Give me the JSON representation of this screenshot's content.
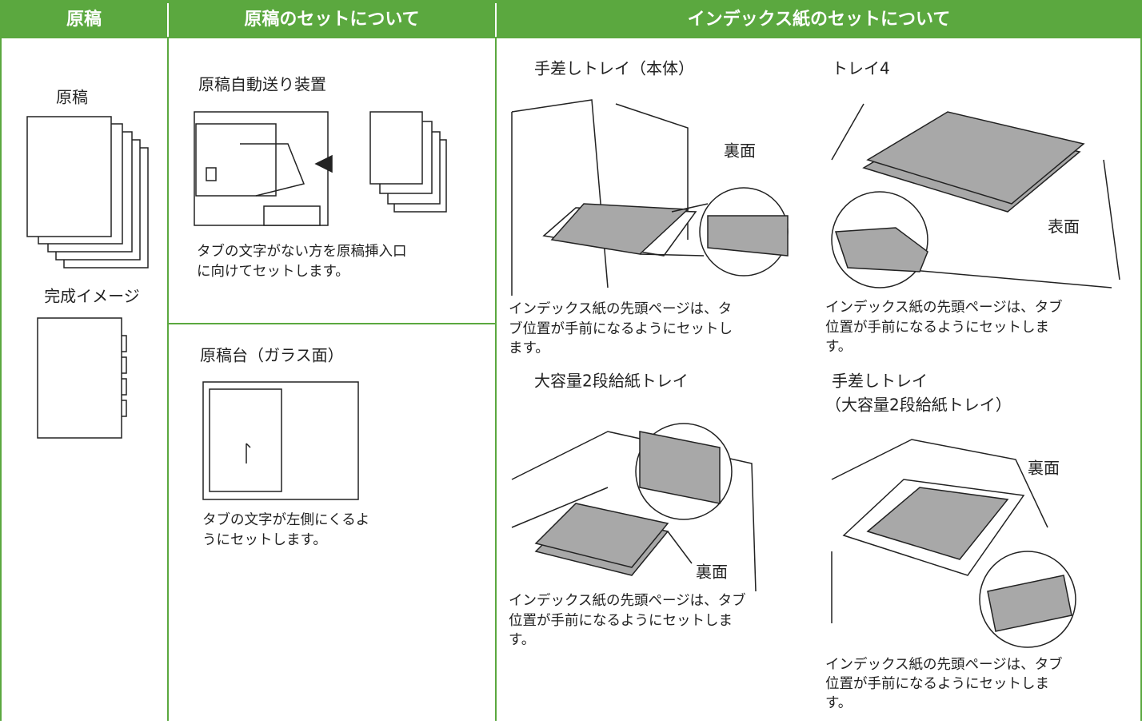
{
  "header": {
    "columns": [
      "原稿",
      "原稿のセットについて",
      "インデックス紙のセットについて"
    ]
  },
  "original_column": {
    "original_label": "原稿",
    "finished_label": "完成イメージ"
  },
  "set_original": [
    {
      "title": "原稿自動送り装置",
      "caption_lines": [
        "タブの文字がない方を原稿挿入口",
        "に向けてセットします。"
      ]
    },
    {
      "title": "原稿台（ガラス面）",
      "caption_lines": [
        "タブの文字が左側にくるよ",
        "うにセットします。"
      ]
    }
  ],
  "index_paper": [
    {
      "title_lines": [
        "手差しトレイ（本体）"
      ],
      "side_label": "裏面",
      "caption_lines": [
        "インデックス紙の先頭ページは、タ",
        "ブ位置が手前になるようにセットし",
        "ます。"
      ]
    },
    {
      "title_lines": [
        "トレイ4"
      ],
      "side_label": "表面",
      "caption_lines": [
        "インデックス紙の先頭ページは、タブ",
        "位置が手前になるようにセットしま",
        "す。"
      ]
    },
    {
      "title_lines": [
        "大容量2段給紙トレイ"
      ],
      "side_label": "裏面",
      "caption_lines": [
        "インデックス紙の先頭ページは、タブ",
        "位置が手前になるようにセットしま",
        "す。"
      ]
    },
    {
      "title_lines": [
        "手差しトレイ",
        "（大容量2段給紙トレイ）"
      ],
      "side_label": "裏面",
      "caption_lines": [
        "インデックス紙の先頭ページは、タブ",
        "位置が手前になるようにセットしま",
        "す。"
      ]
    }
  ]
}
